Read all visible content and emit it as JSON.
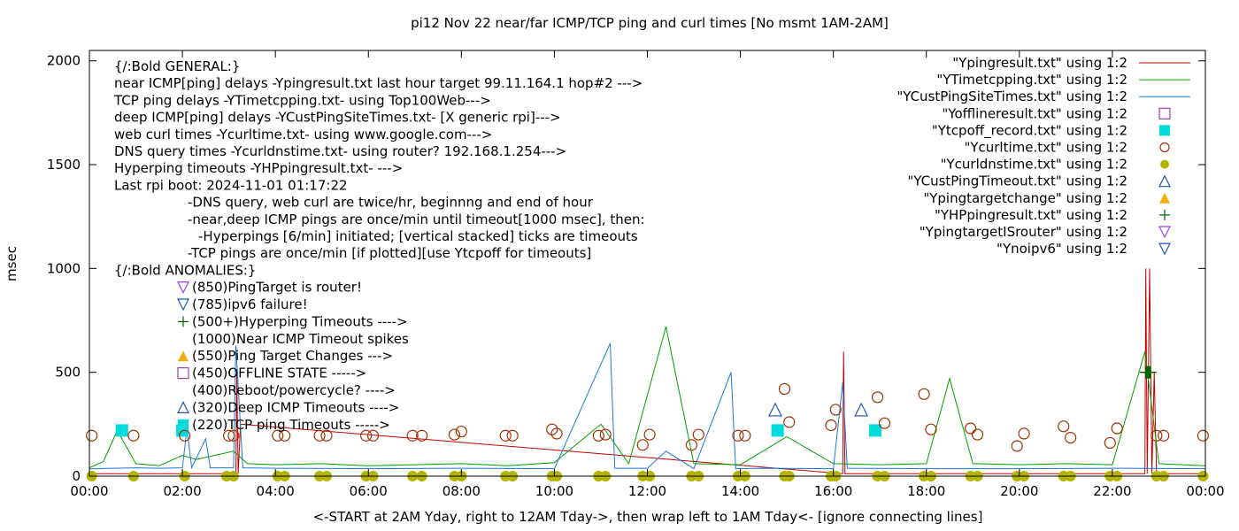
{
  "chart_data": {
    "type": "line",
    "title": "pi12 Nov 22  near/far ICMP/TCP ping and curl times [No msmt 1AM-2AM]",
    "xlabel": "<-START at 2AM Yday, right to 12AM Tday->, then wrap left to 1AM Tday<- [ignore connecting lines]",
    "ylabel": "msec",
    "xlim": [
      0,
      24
    ],
    "ylim": [
      0,
      2050
    ],
    "xticks": [
      {
        "value": 0,
        "label": "00:00"
      },
      {
        "value": 2,
        "label": "02:00"
      },
      {
        "value": 4,
        "label": "04:00"
      },
      {
        "value": 6,
        "label": "06:00"
      },
      {
        "value": 8,
        "label": "08:00"
      },
      {
        "value": 10,
        "label": "10:00"
      },
      {
        "value": 12,
        "label": "12:00"
      },
      {
        "value": 14,
        "label": "14:00"
      },
      {
        "value": 16,
        "label": "16:00"
      },
      {
        "value": 18,
        "label": "18:00"
      },
      {
        "value": 20,
        "label": "20:00"
      },
      {
        "value": 22,
        "label": "22:00"
      },
      {
        "value": 24,
        "label": "00:00"
      }
    ],
    "yticks": [
      {
        "value": 0,
        "label": "0"
      },
      {
        "value": 500,
        "label": "500"
      },
      {
        "value": 1000,
        "label": "1000"
      },
      {
        "value": 1500,
        "label": "1500"
      },
      {
        "value": 2000,
        "label": "2000"
      }
    ],
    "annotations": [
      "{/:Bold GENERAL:}",
      "near ICMP[ping] delays -Ypingresult.txt last hour target 99.11.164.1 hop#2 --->",
      "TCP ping delays -YTimetcpping.txt- using Top100Web--->",
      "deep ICMP[ping] delays -YCustPingSiteTimes.txt- [X generic rpi]--->",
      "web curl times -Ycurltime.txt- using www.google.com--->",
      "DNS query times -Ycurldnstime.txt- using router? 192.168.1.254--->",
      "Hyperping timeouts -YHPpingresult.txt- --->",
      "Last rpi boot: 2024-11-01 01:17:22",
      "-DNS query, web curl are twice/hr, beginnng and end of hour",
      "-near,deep ICMP pings are once/min until timeout[1000 msec], then:",
      "-Hyperpings [6/min] initiated; [vertical stacked] ticks are timeouts",
      "-TCP pings are once/min [if plotted][use Ytcpoff for timeouts]",
      "{/:Bold ANOMALIES:}"
    ],
    "anomaly_legend": [
      {
        "text": "(850)PingTarget is router!",
        "marker": "triangle-down",
        "color": "#a040ff"
      },
      {
        "text": "(785)ipv6 failure!",
        "marker": "triangle-down",
        "color": "#1f56b4"
      },
      {
        "text": "(500+)Hyperping Timeouts ---->",
        "marker": "plus",
        "color": "#006400"
      },
      {
        "text": "(1000)Near ICMP Timeout spikes",
        "marker": "",
        "color": ""
      },
      {
        "text": "(550)Ping Target Changes --->",
        "marker": "triangle-filled",
        "color": "#f0b010"
      },
      {
        "text": "(450)OFFLINE STATE ----->",
        "marker": "square",
        "color": "#a040b0"
      },
      {
        "text": "(400)Reboot/powercycle? ---->",
        "marker": "",
        "color": ""
      },
      {
        "text": "(320)Deep ICMP Timeouts ---->",
        "marker": "triangle-up",
        "color": "#1f56b4"
      },
      {
        "text": "(220)TCP ping Timeouts ----->",
        "marker": "square-filled",
        "color": "#00dcdc"
      }
    ],
    "legend_position": "top-right",
    "series": [
      {
        "name": "\"Ypingresult.txt\" using 1:2",
        "style": "line",
        "color": "#c00000",
        "x": [
          0,
          3.15,
          3.17,
          3.2,
          3.25,
          16.2,
          16.22,
          16.25,
          22.7,
          22.72,
          22.75,
          22.8,
          22.85,
          22.9,
          22.95,
          23.0,
          24
        ],
        "y": [
          12,
          12,
          500,
          12,
          250,
          12,
          600,
          12,
          12,
          1000,
          12,
          1000,
          12,
          500,
          12,
          12,
          12
        ]
      },
      {
        "name": "\"YTimetcpping.txt\" using 1:2",
        "style": "line",
        "color": "#00a000",
        "x": [
          0,
          0.3,
          0.6,
          1.0,
          1.5,
          2.0,
          2.3,
          3.1,
          3.4,
          4.0,
          5.0,
          6.0,
          7.0,
          8.0,
          9.0,
          10.0,
          11.0,
          11.6,
          12.4,
          13.0,
          14.0,
          15.0,
          16.0,
          17.0,
          18.0,
          18.5,
          19.0,
          20.0,
          21.0,
          22.0,
          22.7,
          23.0,
          23.5,
          24
        ],
        "y": [
          40,
          70,
          220,
          60,
          50,
          100,
          80,
          120,
          60,
          55,
          60,
          50,
          55,
          60,
          50,
          65,
          250,
          60,
          720,
          60,
          55,
          190,
          60,
          55,
          60,
          470,
          60,
          55,
          60,
          55,
          600,
          60,
          55,
          50
        ]
      },
      {
        "name": "\"YCustPingSiteTimes.txt\" using 1:2",
        "style": "line",
        "color": "#1f77d4",
        "x": [
          0,
          0.5,
          1.0,
          1.5,
          2.0,
          2.1,
          2.2,
          2.5,
          2.6,
          3.1,
          3.15,
          3.3,
          4.0,
          6.0,
          8.0,
          10.0,
          11.2,
          11.3,
          12.0,
          12.4,
          13.0,
          13.8,
          13.9,
          14.5,
          16.0,
          16.2,
          16.3,
          18.0,
          20.0,
          22.0,
          24
        ],
        "y": [
          35,
          38,
          40,
          38,
          40,
          230,
          40,
          180,
          40,
          40,
          630,
          40,
          38,
          36,
          38,
          36,
          640,
          38,
          38,
          120,
          36,
          500,
          36,
          38,
          36,
          450,
          38,
          36,
          36,
          38,
          36
        ]
      },
      {
        "name": "\"Yofflineresult.txt\" using 1:2",
        "style": "square",
        "color": "#a040b0",
        "x": [],
        "y": []
      },
      {
        "name": "\"Ytcpoff_record.txt\" using 1:2",
        "style": "square-filled",
        "color": "#00dcdc",
        "x": [
          0.7,
          2.0,
          14.8,
          16.9
        ],
        "y": [
          220,
          220,
          220,
          220
        ]
      },
      {
        "name": "\"Ycurltime.txt\" using 1:2",
        "style": "circle",
        "color": "#a03000",
        "x": [
          0.05,
          0.95,
          2.05,
          3.0,
          3.1,
          4.05,
          4.2,
          4.95,
          5.1,
          5.95,
          6.1,
          6.95,
          7.15,
          7.85,
          8.0,
          8.95,
          9.1,
          9.95,
          10.05,
          10.95,
          11.1,
          11.9,
          12.05,
          12.95,
          13.1,
          13.95,
          14.1,
          14.95,
          15.05,
          15.95,
          16.05,
          16.95,
          17.1,
          17.95,
          18.1,
          18.95,
          19.1,
          19.95,
          20.1,
          20.95,
          21.1,
          21.95,
          22.1,
          22.95,
          23.1,
          23.95
        ],
        "y": [
          195,
          195,
          195,
          195,
          195,
          195,
          195,
          195,
          195,
          195,
          195,
          195,
          195,
          200,
          215,
          195,
          195,
          225,
          205,
          195,
          200,
          150,
          200,
          150,
          200,
          195,
          195,
          420,
          260,
          245,
          320,
          380,
          255,
          395,
          225,
          230,
          200,
          145,
          205,
          240,
          185,
          160,
          230,
          195,
          195,
          195
        ]
      },
      {
        "name": "\"Ycurldnstime.txt\" using 1:2",
        "style": "circle-filled",
        "color": "#b4b400",
        "x": [
          0.05,
          0.95,
          2.05,
          2.95,
          3.1,
          4.05,
          4.2,
          4.95,
          5.1,
          5.95,
          6.1,
          6.95,
          7.15,
          7.85,
          8.0,
          8.95,
          9.1,
          9.95,
          10.05,
          10.95,
          11.1,
          11.9,
          12.05,
          12.95,
          13.1,
          13.95,
          14.1,
          14.95,
          15.05,
          15.95,
          16.05,
          16.95,
          17.1,
          17.95,
          18.1,
          18.95,
          19.1,
          19.95,
          20.1,
          20.95,
          21.1,
          21.95,
          22.1,
          22.95,
          23.1,
          23.95
        ],
        "y": [
          0,
          0,
          0,
          0,
          0,
          0,
          0,
          0,
          0,
          0,
          0,
          0,
          0,
          0,
          0,
          0,
          0,
          0,
          0,
          0,
          0,
          0,
          0,
          0,
          0,
          0,
          0,
          0,
          0,
          0,
          0,
          0,
          0,
          0,
          0,
          0,
          0,
          0,
          0,
          0,
          0,
          0,
          0,
          0,
          0,
          0
        ]
      },
      {
        "name": "\"YCustPingTimeout.txt\" using 1:2",
        "style": "triangle-up",
        "color": "#1f56b4",
        "x": [
          14.75,
          16.6
        ],
        "y": [
          320,
          320
        ]
      },
      {
        "name": "\"Ypingtargetchange\" using 1:2",
        "style": "triangle-filled",
        "color": "#f0b010",
        "x": [],
        "y": []
      },
      {
        "name": "\"YHPpingresult.txt\" using 1:2",
        "style": "plus",
        "color": "#006400",
        "x": [
          22.72,
          22.74,
          22.76,
          22.78,
          22.8,
          22.82
        ],
        "y": [
          500,
          500,
          500,
          500,
          500,
          500
        ]
      },
      {
        "name": "\"YpingtargetISrouter\" using 1:2",
        "style": "triangle-down",
        "color": "#a040ff",
        "x": [],
        "y": []
      },
      {
        "name": "\"Ynoipv6\" using 1:2",
        "style": "triangle-down",
        "color": "#1f56b4",
        "x": [],
        "y": []
      }
    ]
  }
}
